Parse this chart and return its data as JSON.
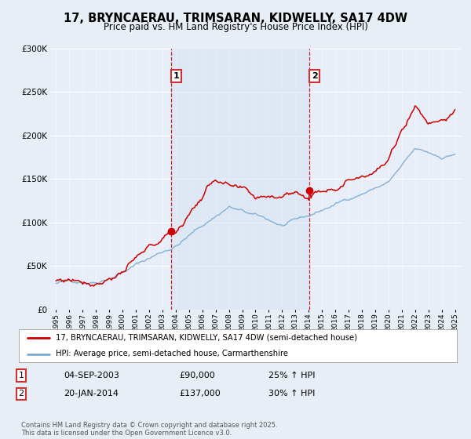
{
  "title": "17, BRYNCAERAU, TRIMSARAN, KIDWELLY, SA17 4DW",
  "subtitle": "Price paid vs. HM Land Registry's House Price Index (HPI)",
  "bg_color": "#e8eef5",
  "plot_bg_color": "#e8eef8",
  "shade_color": "#d0dff0",
  "red_color": "#cc0000",
  "blue_color": "#7aaad0",
  "transaction1_date": 2003.67,
  "transaction1_price": 90000,
  "transaction2_date": 2014.05,
  "transaction2_price": 137000,
  "legend1": "17, BRYNCAERAU, TRIMSARAN, KIDWELLY, SA17 4DW (semi-detached house)",
  "legend2": "HPI: Average price, semi-detached house, Carmarthenshire",
  "table_row1": [
    "1",
    "04-SEP-2003",
    "£90,000",
    "25% ↑ HPI"
  ],
  "table_row2": [
    "2",
    "20-JAN-2014",
    "£137,000",
    "30% ↑ HPI"
  ],
  "footer": "Contains HM Land Registry data © Crown copyright and database right 2025.\nThis data is licensed under the Open Government Licence v3.0.",
  "ylim": [
    0,
    300000
  ],
  "xlim_start": 1994.5,
  "xlim_end": 2025.5
}
